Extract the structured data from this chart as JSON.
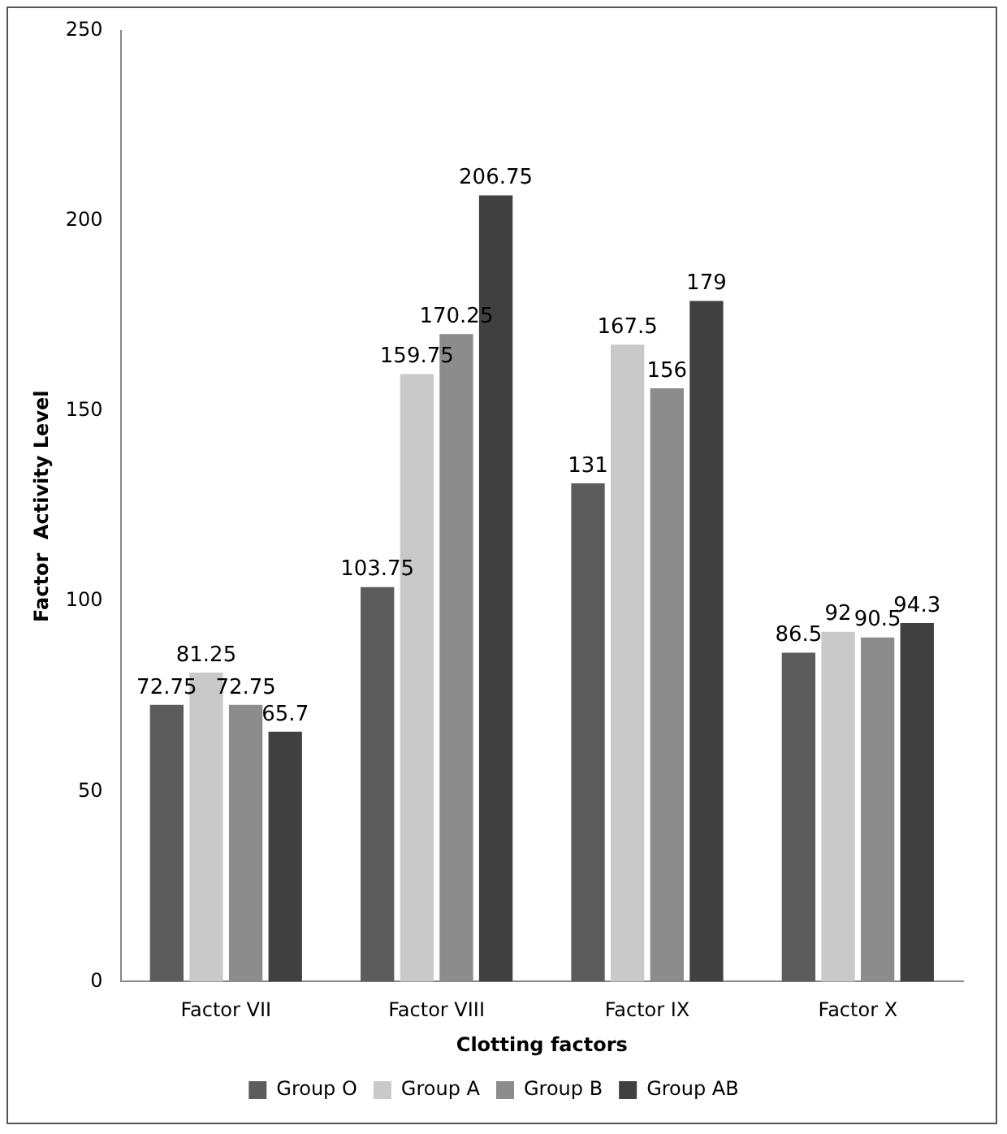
{
  "chart_data": {
    "type": "bar",
    "xlabel": "Clotting factors",
    "ylabel": "Factor  Activity Level",
    "categories": [
      "Factor VII",
      "Factor VIII",
      "Factor IX",
      "Factor X"
    ],
    "series": [
      {
        "name": "Group O",
        "color": "#5c5c5c",
        "values": [
          72.75,
          103.75,
          131,
          86.5
        ]
      },
      {
        "name": "Group A",
        "color": "#c9c9c9",
        "values": [
          81.25,
          159.75,
          167.5,
          92
        ]
      },
      {
        "name": "Group B",
        "color": "#8c8c8c",
        "values": [
          72.75,
          170.25,
          156,
          90.5
        ]
      },
      {
        "name": "Group AB",
        "color": "#404040",
        "values": [
          65.7,
          206.75,
          179,
          94.3
        ]
      }
    ],
    "ylim": [
      0,
      250
    ],
    "yticks": [
      0,
      50,
      100,
      150,
      200,
      250
    ],
    "grid": false,
    "legend": "bottom",
    "data_labels": true
  }
}
